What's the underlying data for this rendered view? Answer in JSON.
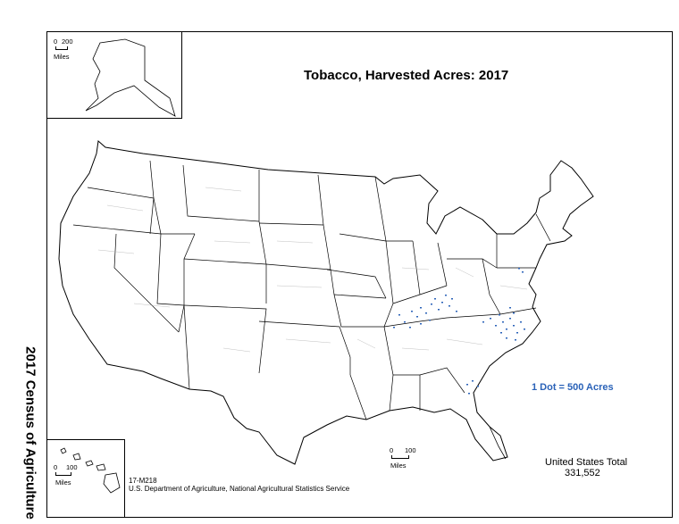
{
  "title": "Tobacco, Harvested Acres:  2017",
  "side_label": "2017 Census of Agriculture",
  "legend": {
    "dot_value": "1 Dot = 500 Acres",
    "dot_color": "#2a62b8"
  },
  "total": {
    "label": "United States Total",
    "value": "331,552"
  },
  "footer": {
    "form_number": "17-M218",
    "agency": "U.S. Department of Agriculture, National Agricultural Statistics Service"
  },
  "scales": {
    "alaska": {
      "zero": "0",
      "max": "200",
      "unit": "Miles"
    },
    "hawaii": {
      "zero": "0",
      "max": "100",
      "unit": "Miles"
    },
    "conus": {
      "zero": "0",
      "max": "100",
      "unit": "Miles"
    }
  },
  "colors": {
    "land_fill": "#ffffff",
    "boundary": "#000000",
    "county_lines": "#9a9a9a"
  }
}
